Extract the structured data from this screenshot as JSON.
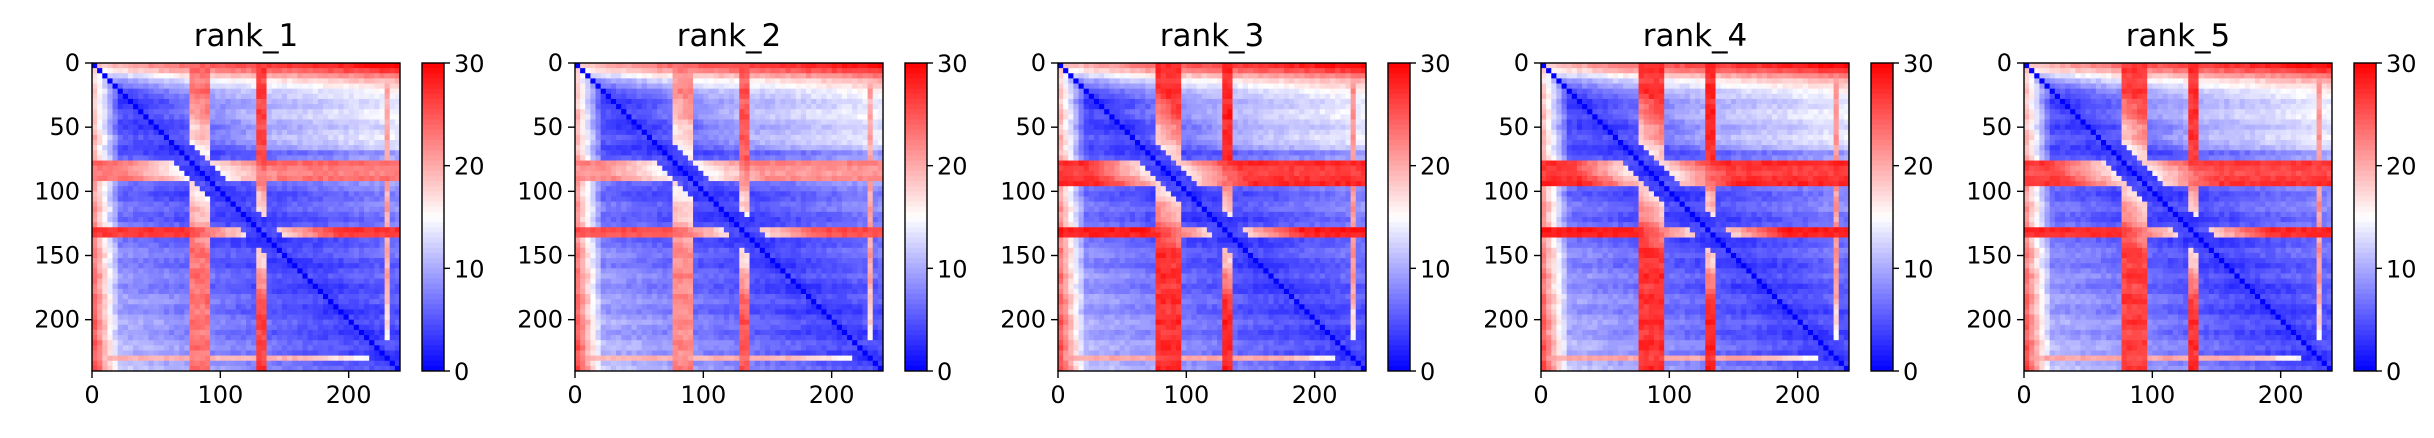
{
  "chart_data": [
    {
      "type": "heatmap",
      "title": "rank_1",
      "xlabel": "",
      "ylabel": "",
      "x_ticks": [
        "0",
        "100",
        "200"
      ],
      "y_ticks": [
        "0",
        "50",
        "100",
        "150",
        "200"
      ],
      "colorbar_ticks": [
        "0",
        "10",
        "20",
        "30"
      ],
      "xlim": [
        0,
        240
      ],
      "ylim": [
        240,
        0
      ],
      "clim": [
        0,
        30
      ],
      "colormap": "bwr",
      "colors": {
        "low": "#0000ff",
        "mid": "#ffffff",
        "high": "#ff0000"
      },
      "high_bands": [
        {
          "from": 78,
          "to": 92,
          "intensity": 0.65
        },
        {
          "from": 130,
          "to": 136,
          "intensity": 0.85
        },
        {
          "from": 228,
          "to": 232,
          "intensity": 0.45
        }
      ]
    },
    {
      "type": "heatmap",
      "title": "rank_2",
      "xlabel": "",
      "ylabel": "",
      "x_ticks": [
        "0",
        "100",
        "200"
      ],
      "y_ticks": [
        "0",
        "50",
        "100",
        "150",
        "200"
      ],
      "colorbar_ticks": [
        "0",
        "10",
        "20",
        "30"
      ],
      "xlim": [
        0,
        240
      ],
      "ylim": [
        240,
        0
      ],
      "clim": [
        0,
        30
      ],
      "colormap": "bwr",
      "colors": {
        "low": "#0000ff",
        "mid": "#ffffff",
        "high": "#ff0000"
      },
      "high_bands": [
        {
          "from": 78,
          "to": 92,
          "intensity": 0.55
        },
        {
          "from": 130,
          "to": 136,
          "intensity": 0.75
        },
        {
          "from": 228,
          "to": 232,
          "intensity": 0.45
        }
      ]
    },
    {
      "type": "heatmap",
      "title": "rank_3",
      "xlabel": "",
      "ylabel": "",
      "x_ticks": [
        "0",
        "100",
        "200"
      ],
      "y_ticks": [
        "0",
        "50",
        "100",
        "150",
        "200"
      ],
      "colorbar_ticks": [
        "0",
        "10",
        "20",
        "30"
      ],
      "xlim": [
        0,
        240
      ],
      "ylim": [
        240,
        0
      ],
      "clim": [
        0,
        30
      ],
      "colormap": "bwr",
      "colors": {
        "low": "#0000ff",
        "mid": "#ffffff",
        "high": "#ff0000"
      },
      "high_bands": [
        {
          "from": 76,
          "to": 94,
          "intensity": 0.9
        },
        {
          "from": 128,
          "to": 137,
          "intensity": 0.95
        },
        {
          "from": 228,
          "to": 232,
          "intensity": 0.5
        }
      ]
    },
    {
      "type": "heatmap",
      "title": "rank_4",
      "xlabel": "",
      "ylabel": "",
      "x_ticks": [
        "0",
        "100",
        "200"
      ],
      "y_ticks": [
        "0",
        "50",
        "100",
        "150",
        "200"
      ],
      "colorbar_ticks": [
        "0",
        "10",
        "20",
        "30"
      ],
      "xlim": [
        0,
        240
      ],
      "ylim": [
        240,
        0
      ],
      "clim": [
        0,
        30
      ],
      "colormap": "bwr",
      "colors": {
        "low": "#0000ff",
        "mid": "#ffffff",
        "high": "#ff0000"
      },
      "high_bands": [
        {
          "from": 76,
          "to": 94,
          "intensity": 0.9
        },
        {
          "from": 128,
          "to": 137,
          "intensity": 0.95
        },
        {
          "from": 228,
          "to": 232,
          "intensity": 0.5
        }
      ]
    },
    {
      "type": "heatmap",
      "title": "rank_5",
      "xlabel": "",
      "ylabel": "",
      "x_ticks": [
        "0",
        "100",
        "200"
      ],
      "y_ticks": [
        "0",
        "50",
        "100",
        "150",
        "200"
      ],
      "colorbar_ticks": [
        "0",
        "10",
        "20",
        "30"
      ],
      "xlim": [
        0,
        240
      ],
      "ylim": [
        240,
        0
      ],
      "clim": [
        0,
        30
      ],
      "colormap": "bwr",
      "colors": {
        "low": "#0000ff",
        "mid": "#ffffff",
        "high": "#ff0000"
      },
      "high_bands": [
        {
          "from": 76,
          "to": 94,
          "intensity": 0.85
        },
        {
          "from": 128,
          "to": 137,
          "intensity": 0.9
        },
        {
          "from": 228,
          "to": 232,
          "intensity": 0.5
        }
      ]
    }
  ]
}
